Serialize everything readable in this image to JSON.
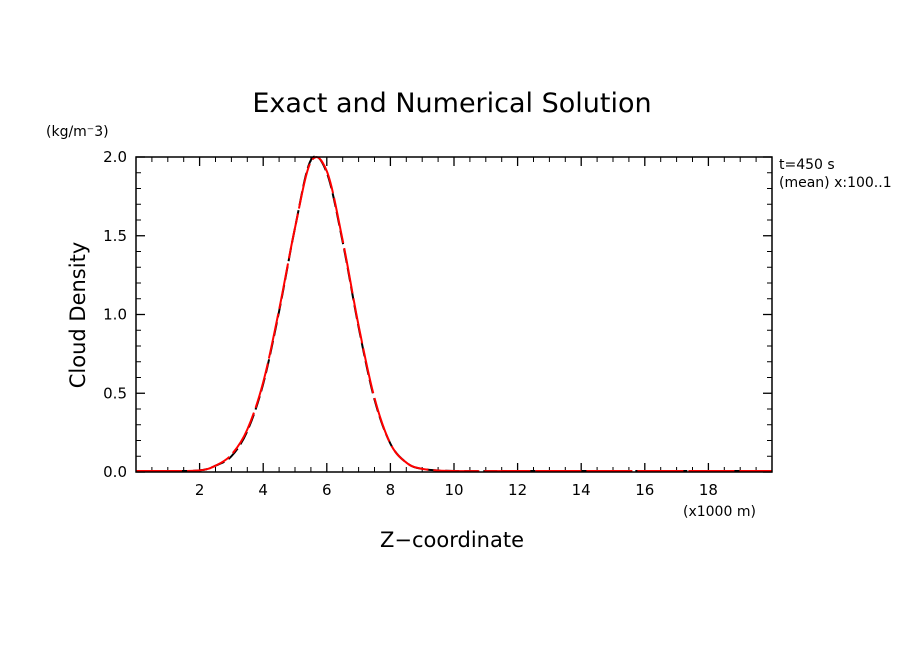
{
  "chart_data": {
    "type": "line",
    "title": "Exact and Numerical Solution",
    "xlabel": "Z−coordinate",
    "ylabel": "Cloud Density",
    "x_unit": "(x1000 m)",
    "y_unit": "(kg/m⁻3)",
    "annotations": [
      "t=450 s",
      "(mean) x:100..1"
    ],
    "xlim": [
      0,
      20
    ],
    "ylim": [
      0,
      2.0
    ],
    "x_ticks": [
      2,
      4,
      6,
      8,
      10,
      12,
      14,
      16,
      18
    ],
    "y_ticks": [
      0.0,
      0.5,
      1.0,
      1.5,
      2.0
    ],
    "x_tick_labels": [
      "2",
      "4",
      "6",
      "8",
      "10",
      "12",
      "14",
      "16",
      "18"
    ],
    "y_tick_labels": [
      "0.0",
      "0.5",
      "1.0",
      "1.5",
      "2.0"
    ],
    "grid": false,
    "x": [
      0,
      1,
      2,
      2.5,
      3,
      3.5,
      4,
      4.5,
      5,
      5.5,
      6,
      6.5,
      7,
      7.5,
      8,
      8.5,
      9,
      10,
      12,
      14,
      16,
      18,
      20
    ],
    "series": [
      {
        "color": "#000000",
        "style": "dashed",
        "values": [
          0,
          0.0,
          0.01,
          0.04,
          0.1,
          0.26,
          0.56,
          1.02,
          1.55,
          1.98,
          1.9,
          1.46,
          0.92,
          0.46,
          0.18,
          0.06,
          0.02,
          0.0,
          0,
          0,
          0,
          0,
          0
        ]
      },
      {
        "color": "#ff0000",
        "style": "solid",
        "values": [
          0,
          0.0,
          0.01,
          0.04,
          0.11,
          0.27,
          0.57,
          1.03,
          1.55,
          1.97,
          1.91,
          1.47,
          0.93,
          0.47,
          0.18,
          0.06,
          0.02,
          0.0,
          0,
          0,
          0,
          0,
          0
        ]
      }
    ]
  }
}
